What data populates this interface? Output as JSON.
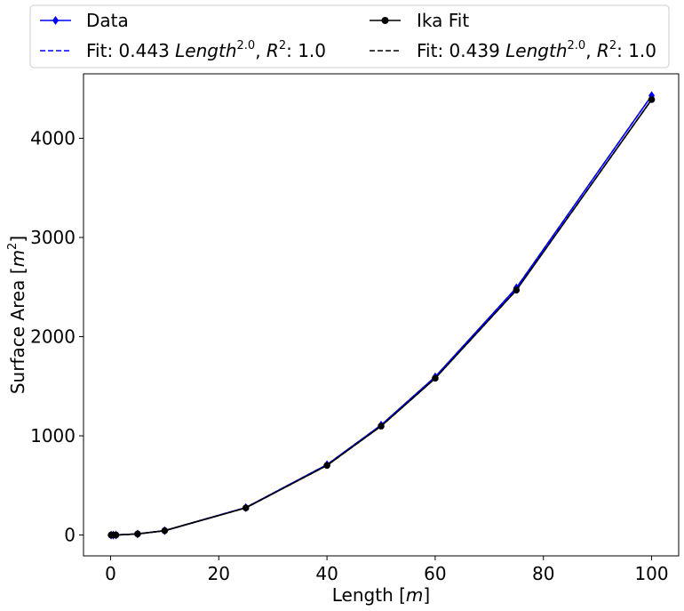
{
  "chart_data": {
    "type": "line",
    "xlabel": "Length [m]",
    "ylabel": "Surface Area [m²]",
    "xlim": [
      -5,
      105
    ],
    "ylim": [
      -210,
      4650
    ],
    "xticks": [
      0,
      20,
      40,
      60,
      80,
      100
    ],
    "yticks": [
      0,
      1000,
      2000,
      3000,
      4000
    ],
    "grid": false,
    "legend_position": "top, above plot, 2 columns",
    "x": [
      0.1,
      0.5,
      1,
      5,
      10,
      25,
      40,
      50,
      60,
      75,
      100
    ],
    "series": [
      {
        "name": "Data",
        "color": "#0000ff",
        "marker": "diamond",
        "linestyle": "solid",
        "values": [
          0.004,
          0.11,
          0.44,
          11,
          44,
          277,
          709,
          1108,
          1595,
          2492,
          4430
        ]
      },
      {
        "name": "Fit: 0.443 Length^2.0, R^2: 1.0",
        "color": "#0000ff",
        "marker": "none",
        "linestyle": "dashed",
        "values": [
          0.004,
          0.11,
          0.443,
          11.1,
          44.3,
          277,
          709,
          1108,
          1595,
          2492,
          4430
        ]
      },
      {
        "name": "Ika Fit",
        "color": "#000000",
        "marker": "circle",
        "linestyle": "solid",
        "values": [
          0.004,
          0.11,
          0.44,
          11,
          44,
          274,
          702,
          1098,
          1580,
          2469,
          4390
        ]
      },
      {
        "name": "Fit: 0.439 Length^2.0, R^2: 1.0",
        "color": "#000000",
        "marker": "none",
        "linestyle": "dashed",
        "values": [
          0.004,
          0.11,
          0.439,
          11,
          43.9,
          274,
          702,
          1098,
          1580,
          2469,
          4390
        ]
      }
    ]
  },
  "legend": {
    "entry1": "Data",
    "entry2": "Ika Fit",
    "entry3_prefix": "Fit: 0.443 ",
    "entry4_prefix": "Fit: 0.439 ",
    "var": "Length",
    "exp": "2.0",
    "r": "R",
    "r_exp": "2",
    "r_suffix": ": 1.0"
  },
  "axes": {
    "xlabel_text": "Length [",
    "xlabel_unit": "m",
    "xlabel_end": "]",
    "ylabel_text": "Surface Area [",
    "ylabel_unit": "m",
    "ylabel_exp": "2",
    "ylabel_end": "]"
  }
}
